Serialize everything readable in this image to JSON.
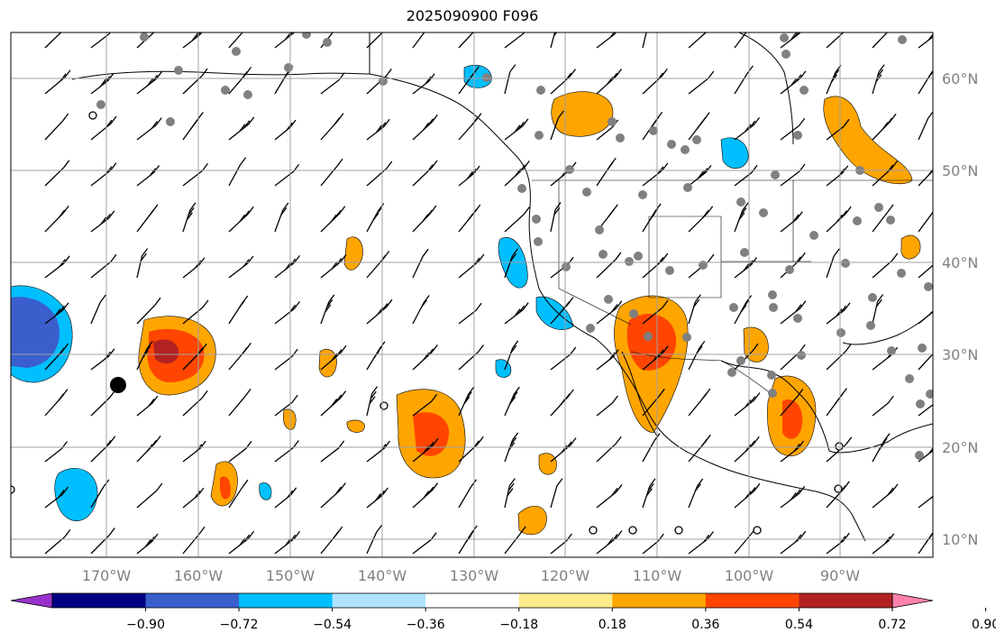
{
  "title": "2025090900 F096",
  "map": {
    "lon_labels": [
      "170°W",
      "160°W",
      "150°W",
      "140°W",
      "130°W",
      "120°W",
      "110°W",
      "100°W",
      "90°W"
    ],
    "lat_labels": [
      "60°N",
      "50°N",
      "40°N",
      "30°N",
      "20°N",
      "10°N"
    ]
  },
  "colorbar": {
    "tick_labels": [
      "−0.90",
      "−0.72",
      "−0.54",
      "−0.36",
      "−0.18",
      "0.18",
      "0.36",
      "0.54",
      "0.72",
      "0.90"
    ],
    "colors": [
      "#9932cc",
      "#000080",
      "#3a5fcd",
      "#00bfff",
      "#b0e2ff",
      "#ffffff",
      "#ffec8b",
      "#ffa500",
      "#ff4500",
      "#b22222",
      "#ff82ab"
    ]
  },
  "colors": {
    "grid": "#a0a0a0",
    "coast": "#000000",
    "axis_label": "#808080"
  }
}
